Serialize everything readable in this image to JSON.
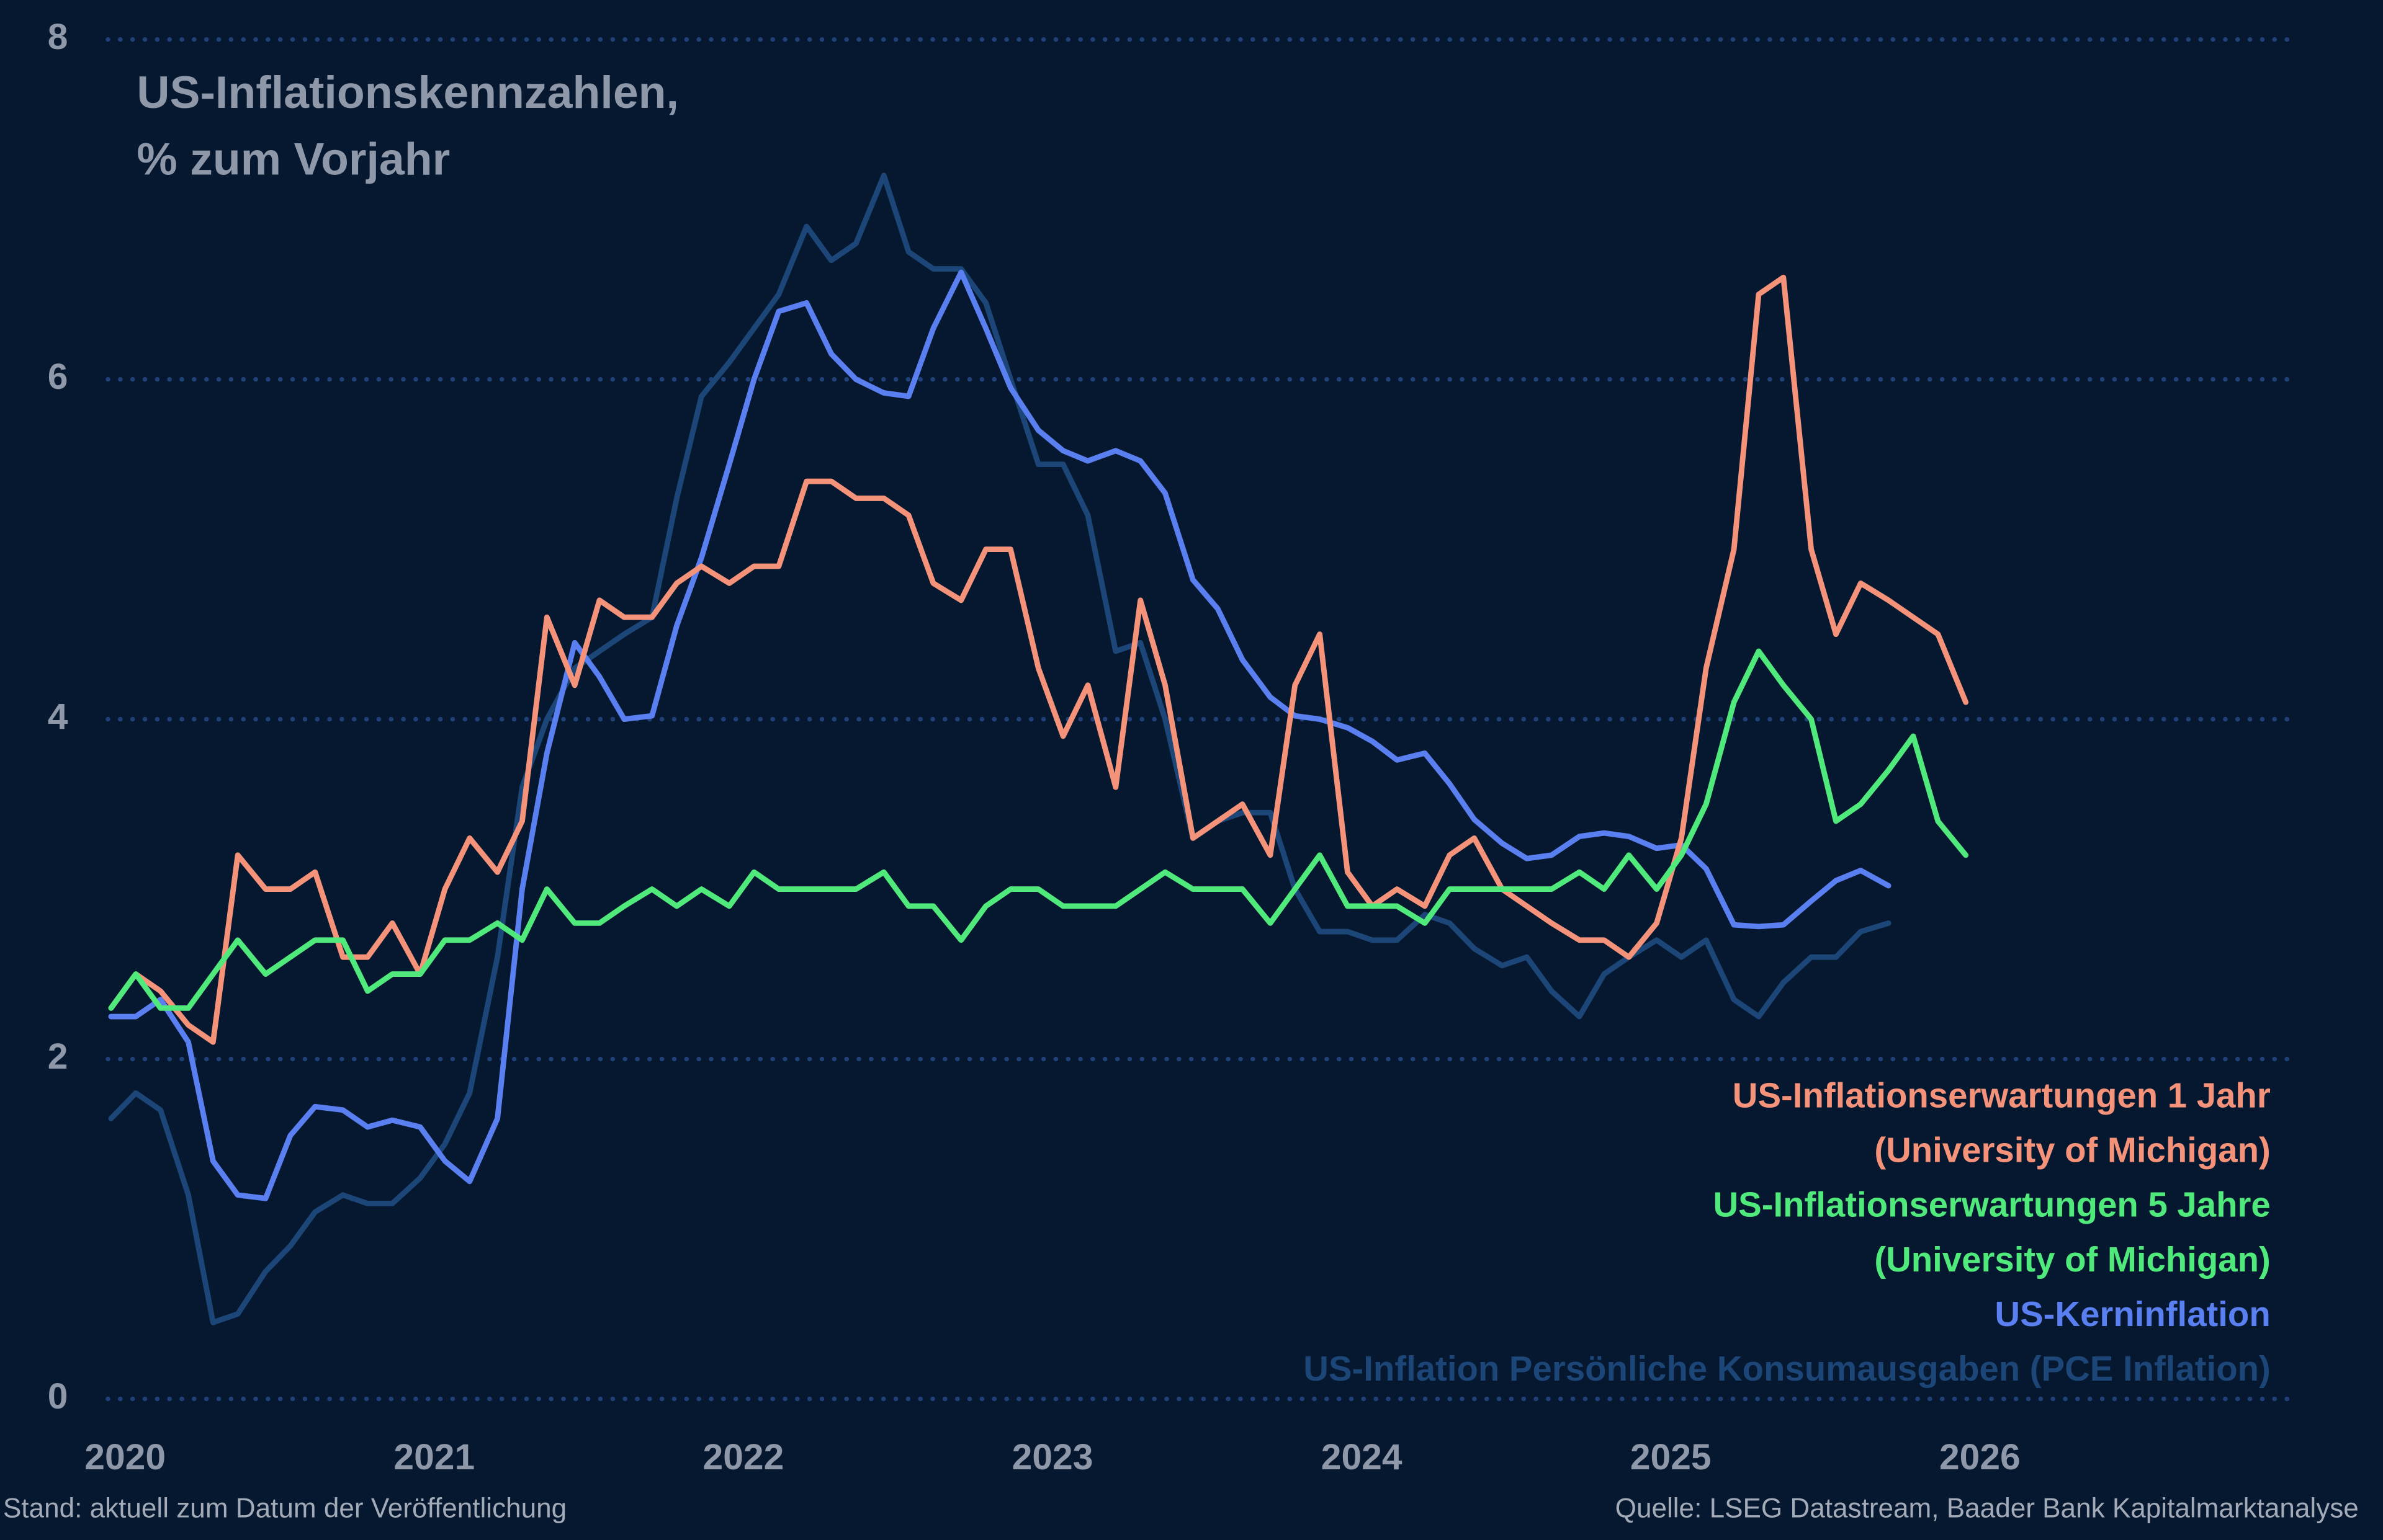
{
  "chart_data": {
    "type": "line",
    "title": "US-Inflationskennzahlen,\n% zum Vorjahr",
    "footer_left": "Stand: aktuell zum Datum der Veröffentlichung",
    "footer_right": "Quelle: LSEG Datastream, Baader Bank Kapitalmarktanalyse",
    "xlim": [
      2019.9,
      2026.96
    ],
    "ylim": [
      0,
      8
    ],
    "xticks": [
      2020,
      2021,
      2022,
      2023,
      2024,
      2025,
      2026
    ],
    "yticks": [
      0,
      2,
      4,
      6,
      8
    ],
    "grid": true,
    "x": [
      2019.92,
      2020.0,
      2020.08,
      2020.17,
      2020.25,
      2020.33,
      2020.42,
      2020.5,
      2020.58,
      2020.67,
      2020.75,
      2020.83,
      2020.92,
      2021.0,
      2021.08,
      2021.17,
      2021.25,
      2021.33,
      2021.42,
      2021.5,
      2021.58,
      2021.67,
      2021.75,
      2021.83,
      2021.92,
      2022.0,
      2022.08,
      2022.17,
      2022.25,
      2022.33,
      2022.42,
      2022.5,
      2022.58,
      2022.67,
      2022.75,
      2022.83,
      2022.92,
      2023.0,
      2023.08,
      2023.17,
      2023.25,
      2023.33,
      2023.42,
      2023.5,
      2023.58,
      2023.67,
      2023.75,
      2023.83,
      2023.92,
      2024.0,
      2024.08,
      2024.17,
      2024.25,
      2024.33,
      2024.42,
      2024.5,
      2024.58,
      2024.67,
      2024.75,
      2024.83,
      2024.92,
      2025.0,
      2025.08,
      2025.17,
      2025.25,
      2025.33,
      2025.42,
      2025.5,
      2025.58,
      2025.67,
      2025.75,
      2025.83,
      2025.92
    ],
    "series": [
      {
        "name": "US-Inflation Persönliche Konsumausgaben (PCE Inflation)",
        "color": "#1c4677",
        "values": [
          1.65,
          1.8,
          1.7,
          1.2,
          0.45,
          0.5,
          0.75,
          0.9,
          1.1,
          1.2,
          1.15,
          1.15,
          1.3,
          1.5,
          1.8,
          2.6,
          3.6,
          4.0,
          4.3,
          4.4,
          4.5,
          4.6,
          5.3,
          5.9,
          6.1,
          6.3,
          6.5,
          6.9,
          6.7,
          6.8,
          7.2,
          6.75,
          6.65,
          6.65,
          6.45,
          6.0,
          5.5,
          5.5,
          5.2,
          4.4,
          4.45,
          4.0,
          3.3,
          3.4,
          3.45,
          3.45,
          3.0,
          2.75,
          2.75,
          2.7,
          2.7,
          2.85,
          2.8,
          2.65,
          2.55,
          2.6,
          2.4,
          2.25,
          2.5,
          2.6,
          2.7,
          2.6,
          2.7,
          2.35,
          2.25,
          2.45,
          2.6,
          2.6,
          2.75,
          2.8,
          null,
          null,
          null
        ]
      },
      {
        "name": "US-Kerninflation",
        "color": "#5a7ff0",
        "values": [
          2.25,
          2.25,
          2.35,
          2.1,
          1.4,
          1.2,
          1.18,
          1.55,
          1.72,
          1.7,
          1.6,
          1.64,
          1.6,
          1.4,
          1.28,
          1.65,
          3.0,
          3.8,
          4.45,
          4.25,
          4.0,
          4.02,
          4.55,
          4.95,
          5.5,
          6.0,
          6.4,
          6.45,
          6.15,
          6.0,
          5.92,
          5.9,
          6.3,
          6.63,
          6.3,
          5.95,
          5.7,
          5.58,
          5.52,
          5.58,
          5.52,
          5.33,
          4.82,
          4.65,
          4.35,
          4.13,
          4.02,
          4.0,
          3.95,
          3.87,
          3.76,
          3.8,
          3.62,
          3.41,
          3.27,
          3.18,
          3.2,
          3.31,
          3.33,
          3.31,
          3.24,
          3.26,
          3.12,
          2.79,
          2.78,
          2.79,
          2.93,
          3.05,
          3.11,
          3.02,
          null,
          null,
          null
        ]
      },
      {
        "name": "US-Inflationserwartungen 1 Jahr\n(University of Michigan)",
        "color": "#f5937a",
        "values": [
          2.3,
          2.5,
          2.4,
          2.2,
          2.1,
          3.2,
          3.0,
          3.0,
          3.1,
          2.6,
          2.6,
          2.8,
          2.5,
          3.0,
          3.3,
          3.1,
          3.4,
          4.6,
          4.2,
          4.7,
          4.6,
          4.6,
          4.8,
          4.9,
          4.8,
          4.9,
          4.9,
          5.4,
          5.4,
          5.3,
          5.3,
          5.2,
          4.8,
          4.7,
          5.0,
          5.0,
          4.3,
          3.9,
          4.2,
          3.6,
          4.7,
          4.2,
          3.3,
          3.4,
          3.5,
          3.2,
          4.2,
          4.5,
          3.1,
          2.9,
          3.0,
          2.9,
          3.2,
          3.3,
          3.0,
          2.9,
          2.8,
          2.7,
          2.7,
          2.6,
          2.8,
          3.3,
          4.3,
          5.0,
          6.5,
          6.6,
          5.0,
          4.5,
          4.8,
          4.7,
          4.6,
          4.5,
          4.1
        ]
      },
      {
        "name": "US-Inflationserwartungen 5 Jahre\n(University of Michigan)",
        "color": "#50ea7c",
        "values": [
          2.3,
          2.5,
          2.3,
          2.3,
          2.5,
          2.7,
          2.5,
          2.6,
          2.7,
          2.7,
          2.4,
          2.5,
          2.5,
          2.7,
          2.7,
          2.8,
          2.7,
          3.0,
          2.8,
          2.8,
          2.9,
          3.0,
          2.9,
          3.0,
          2.9,
          3.1,
          3.0,
          3.0,
          3.0,
          3.0,
          3.1,
          2.9,
          2.9,
          2.7,
          2.9,
          3.0,
          3.0,
          2.9,
          2.9,
          2.9,
          3.0,
          3.1,
          3.0,
          3.0,
          3.0,
          2.8,
          3.0,
          3.2,
          2.9,
          2.9,
          2.9,
          2.8,
          3.0,
          3.0,
          3.0,
          3.0,
          3.0,
          3.1,
          3.0,
          3.2,
          3.0,
          3.2,
          3.5,
          4.1,
          4.4,
          4.2,
          4.0,
          3.4,
          3.5,
          3.7,
          3.9,
          3.4,
          3.2
        ]
      }
    ]
  }
}
